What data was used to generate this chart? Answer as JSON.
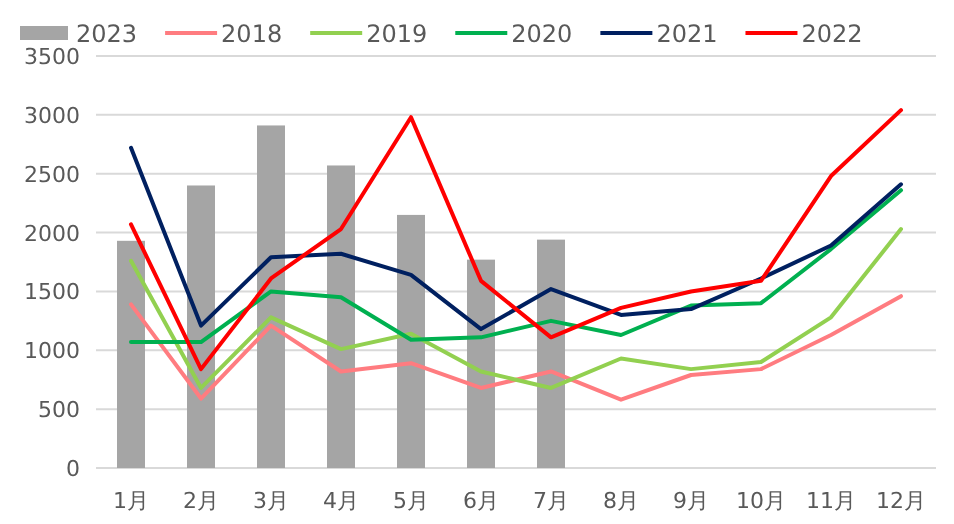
{
  "chart_data": {
    "type": "bar",
    "categories": [
      "1月",
      "2月",
      "3月",
      "4月",
      "5月",
      "6月",
      "7月",
      "8月",
      "9月",
      "10月",
      "11月",
      "12月"
    ],
    "ylim": [
      0,
      3500
    ],
    "yticks": [
      0,
      500,
      1000,
      1500,
      2000,
      2500,
      3000,
      3500
    ],
    "grid": "y",
    "legend": "top",
    "series": [
      {
        "name": "2023",
        "color": "#a5a5a5",
        "values": [
          1930,
          2400,
          2910,
          2570,
          2150,
          1770,
          1940,
          null,
          null,
          null,
          null,
          null
        ]
      },
      {
        "name": "2018",
        "type": "line",
        "color": "#ff7c80",
        "values": [
          1390,
          590,
          1210,
          820,
          890,
          680,
          820,
          580,
          790,
          840,
          1130,
          1460
        ]
      },
      {
        "name": "2019",
        "type": "line",
        "color": "#92d050",
        "values": [
          1760,
          680,
          1280,
          1010,
          1140,
          820,
          680,
          930,
          840,
          900,
          1280,
          2030
        ]
      },
      {
        "name": "2020",
        "type": "line",
        "color": "#00b050",
        "values": [
          1070,
          1070,
          1500,
          1450,
          1090,
          1110,
          1250,
          1130,
          1380,
          1400,
          1860,
          2360
        ]
      },
      {
        "name": "2021",
        "type": "line",
        "color": "#002060",
        "values": [
          2720,
          1210,
          1790,
          1820,
          1640,
          1180,
          1520,
          1300,
          1350,
          1610,
          1890,
          2410
        ]
      },
      {
        "name": "2022",
        "type": "line",
        "color": "#ff0000",
        "values": [
          2070,
          840,
          1610,
          2030,
          2980,
          1590,
          1110,
          1360,
          1500,
          1590,
          2480,
          3040
        ]
      }
    ]
  }
}
